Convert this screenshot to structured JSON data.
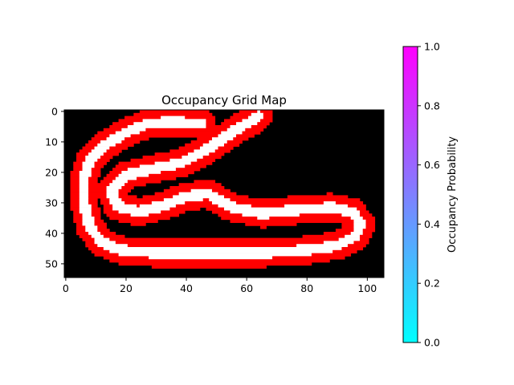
{
  "chart_data": {
    "type": "heatmap",
    "title": "Occupancy Grid Map",
    "xlabel": "",
    "ylabel": "",
    "grid_cols": 106,
    "grid_rows": 55,
    "xlim": [
      -0.5,
      105.5
    ],
    "ylim": [
      54.5,
      -0.5
    ],
    "x_ticks": [
      0,
      20,
      40,
      60,
      80,
      100
    ],
    "y_ticks": [
      0,
      10,
      20,
      30,
      40,
      50
    ],
    "cell_values": {
      "unknown": 0.0,
      "occupied": 1.0,
      "free": 0.0
    },
    "cell_colors": {
      "unknown": "#000000",
      "occupied": "#ff0000",
      "free": "#ffffff"
    },
    "track_centerline": [
      [
        45,
        4
      ],
      [
        35,
        3.5
      ],
      [
        27,
        4
      ],
      [
        20,
        7
      ],
      [
        13,
        11
      ],
      [
        8,
        16
      ],
      [
        6,
        22
      ],
      [
        6,
        30
      ],
      [
        8,
        38
      ],
      [
        12,
        43
      ],
      [
        18,
        45.5
      ],
      [
        30,
        46.5
      ],
      [
        50,
        46.5
      ],
      [
        65,
        46.5
      ],
      [
        80,
        45.5
      ],
      [
        90,
        44
      ],
      [
        96,
        41
      ],
      [
        98,
        37
      ],
      [
        95,
        33
      ],
      [
        88,
        31.5
      ],
      [
        75,
        32.5
      ],
      [
        65,
        33.5
      ],
      [
        55,
        31.5
      ],
      [
        47,
        27
      ],
      [
        40,
        28
      ],
      [
        32,
        31
      ],
      [
        24,
        33
      ],
      [
        17,
        31
      ],
      [
        15,
        26
      ],
      [
        20,
        21
      ],
      [
        28,
        19
      ],
      [
        38,
        17
      ],
      [
        46,
        13
      ],
      [
        52,
        9
      ],
      [
        58,
        5
      ],
      [
        62,
        3
      ],
      [
        64,
        1.5
      ]
    ],
    "colorbar": {
      "label": "Occupancy Probability",
      "min": 0.0,
      "max": 1.0,
      "ticks": [
        "0.0",
        "0.2",
        "0.4",
        "0.6",
        "0.8",
        "1.0"
      ],
      "colormap": "cool",
      "color_low": "#00ffff",
      "color_high": "#ff00ff"
    }
  }
}
